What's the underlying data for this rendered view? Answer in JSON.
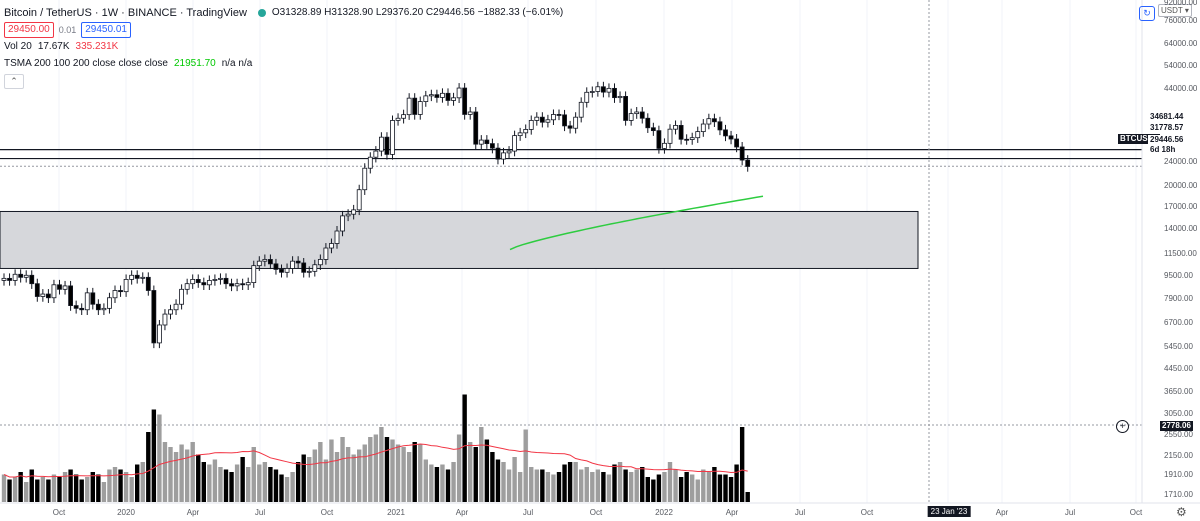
{
  "header": {
    "title": "Bitcoin / TetherUS · 1W · BINANCE · TradingView",
    "logo_color": "#26a69a",
    "ohlc": "O31328.89 H31328.90 L29376.20 C29446.56 −1882.33 (−6.01%)",
    "sell_price": "29450.00",
    "spread": "0.01",
    "buy_price": "29450.01",
    "sell_color": "#f23645",
    "buy_color": "#2962ff"
  },
  "volume_legend": {
    "label": "Vol 20",
    "value": "17.67K",
    "ma_value": "335.231K",
    "ma_color": "#f23645"
  },
  "indicator_legend": {
    "label": "TSMA 200 100 200 close close close",
    "value": "21951.70",
    "value_color": "#00c800",
    "extra": "n/a n/a"
  },
  "collapse_icon": "chevron-up-icon",
  "currency_selector": "USDT ▾",
  "price_axis": {
    "labels": [
      "92000.00",
      "76000.00",
      "64000.00",
      "54000.00",
      "44000.00",
      "24000.00",
      "20000.00",
      "17000.00",
      "14000.00",
      "11500.00",
      "9500.00",
      "7900.00",
      "6700.00",
      "5450.00",
      "4450.00",
      "3650.00",
      "3050.00",
      "2550.00",
      "2150.00",
      "1910.00",
      "1710.00"
    ],
    "tags": [
      {
        "text": "34681.44",
        "bg": "#ffffff",
        "color": "#131722"
      },
      {
        "text": "31778.57",
        "bg": "#ffffff",
        "color": "#131722"
      },
      {
        "text": "29446.56",
        "bg": "#ffffff",
        "color": "#131722"
      },
      {
        "text": "6d 18h",
        "bg": "#ffffff",
        "color": "#131722"
      },
      {
        "text": "2778.06",
        "bg": "#131722",
        "color": "#ffffff"
      }
    ],
    "symbol_tag": "BTCUSDT"
  },
  "time_axis": {
    "labels": [
      "Oct",
      "2020",
      "Apr",
      "Jul",
      "Oct",
      "2021",
      "Apr",
      "Jul",
      "Oct",
      "2022",
      "Apr",
      "Jul",
      "Oct",
      "Apr",
      "Jul",
      "Oct"
    ],
    "cursor_label": "23 Jan '23"
  },
  "drawings": {
    "resistance_line": 34681.44,
    "support_line": 31778.57,
    "current_price": 29446.56,
    "zone": {
      "top": 18900,
      "bottom": 10800
    },
    "zone_color": "#d6d7db",
    "ma_color": "#2ecc40",
    "up_color": "#ffffff",
    "down_color": "#000000"
  },
  "chart_data": {
    "type": "candlestick",
    "interval": "1W",
    "scale": "log",
    "ylim": [
      1510,
      92000
    ],
    "x_range": [
      "2019-Q3",
      "2023-Q3"
    ],
    "weekly_close_path": [
      9800,
      9600,
      10200,
      9900,
      10100,
      9300,
      8200,
      8400,
      8100,
      9200,
      8800,
      9100,
      7500,
      7300,
      7200,
      8500,
      7600,
      7200,
      7300,
      8100,
      8700,
      8600,
      9700,
      10100,
      9800,
      9900,
      8700,
      5200,
      6200,
      6900,
      7200,
      7600,
      8800,
      9300,
      9700,
      9400,
      9200,
      9600,
      9700,
      9800,
      9300,
      9100,
      9300,
      9200,
      9400,
      11100,
      11600,
      11800,
      11300,
      10700,
      10400,
      10800,
      11600,
      11400,
      10400,
      10500,
      11200,
      11800,
      13200,
      13800,
      15600,
      18100,
      18400,
      19200,
      23400,
      28900,
      32200,
      34200,
      39200,
      33100,
      46200,
      47200,
      48900,
      57500,
      49000,
      55600,
      58800,
      59500,
      57900,
      60300,
      56200,
      57700,
      63500,
      49000,
      50200,
      36600,
      38100,
      36800,
      35200,
      31600,
      33600,
      34200,
      39800,
      40900,
      42300,
      46200,
      47700,
      45400,
      46500,
      49000,
      48800,
      43800,
      42800,
      47700,
      55200,
      60900,
      61400,
      64300,
      61000,
      63300,
      57800,
      58500,
      46200,
      49400,
      50200,
      47200,
      43000,
      41800,
      35100,
      36900,
      42400,
      44000,
      38400,
      38300,
      39000,
      41400,
      44600,
      47000,
      45600,
      42100,
      39700,
      38500,
      35600,
      31300,
      29400
    ]
  },
  "volume_data": {
    "values": [
      1.1,
      0.9,
      1.0,
      1.2,
      0.8,
      1.3,
      0.9,
      1.0,
      0.9,
      1.1,
      1.0,
      1.2,
      1.3,
      1.1,
      0.9,
      1.0,
      1.2,
      1.1,
      0.8,
      1.3,
      1.4,
      1.3,
      1.2,
      1.0,
      1.5,
      1.6,
      2.8,
      3.7,
      3.5,
      2.4,
      2.2,
      2.0,
      2.3,
      2.1,
      2.4,
      1.9,
      1.6,
      1.5,
      1.7,
      1.4,
      1.3,
      1.2,
      1.5,
      1.8,
      1.4,
      2.2,
      1.5,
      1.6,
      1.4,
      1.3,
      1.1,
      1.0,
      1.2,
      1.6,
      1.9,
      1.8,
      2.1,
      2.4,
      1.7,
      2.5,
      2.0,
      2.6,
      2.2,
      1.9,
      2.1,
      2.3,
      2.6,
      2.7,
      3.0,
      2.6,
      2.5,
      2.3,
      2.2,
      2.0,
      2.4,
      2.3,
      1.7,
      1.5,
      1.4,
      1.5,
      1.3,
      1.6,
      2.7,
      4.3,
      2.4,
      2.2,
      3.0,
      2.5,
      2.0,
      1.7,
      1.6,
      1.3,
      1.8,
      1.2,
      2.9,
      1.4,
      1.3,
      1.3,
      1.2,
      1.1,
      1.2,
      1.5,
      1.6,
      1.6,
      1.3,
      1.4,
      1.2,
      1.3,
      1.2,
      1.1,
      1.5,
      1.6,
      1.3,
      1.2,
      1.3,
      1.4,
      1.0,
      0.9,
      1.1,
      1.2,
      1.6,
      1.3,
      1.0,
      1.2,
      1.1,
      0.9,
      1.3,
      1.2,
      1.4,
      1.1,
      1.1,
      1.0,
      1.5,
      3.0,
      0.4
    ],
    "ma_color": "#f23645",
    "up_color": "#9e9e9e",
    "down_color": "#000000"
  }
}
